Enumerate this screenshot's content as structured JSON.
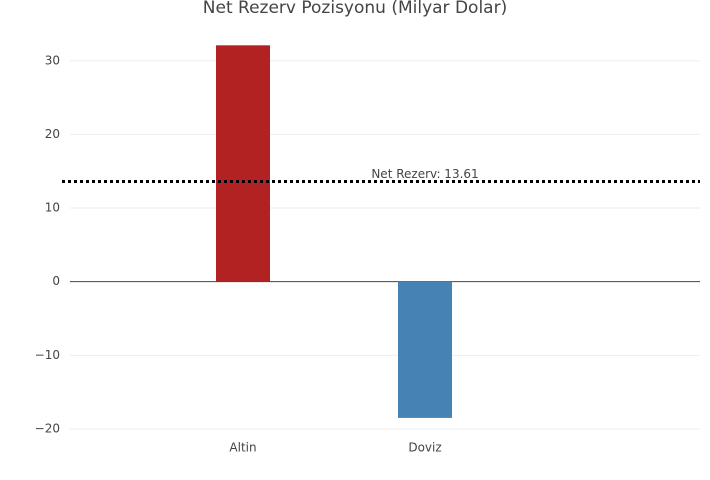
{
  "chart_data": {
    "type": "bar",
    "title": "Net Rezerv Pozisyonu (Milyar Dolar)",
    "categories": [
      "Altin",
      "Doviz"
    ],
    "values": [
      32.1,
      -18.5
    ],
    "colors": [
      "#b22222",
      "#4682b4"
    ],
    "ylim": [
      -21.5,
      33.5
    ],
    "yticks": [
      {
        "value": -20,
        "label": "−20"
      },
      {
        "value": -10,
        "label": "−10"
      },
      0,
      10,
      20,
      30
    ],
    "grid": true,
    "reference_line": {
      "value": 13.61,
      "label": "Net Rezerv: 13.61"
    }
  }
}
